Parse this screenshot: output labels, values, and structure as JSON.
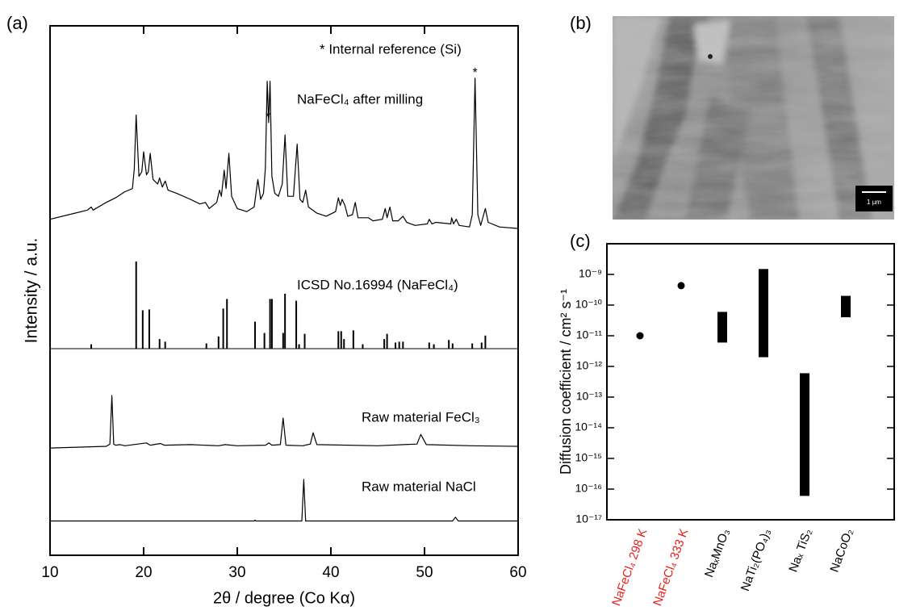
{
  "chart_data": [
    {
      "type": "line",
      "label": "(a)",
      "xlabel": "2θ / degree (Co Kα)",
      "ylabel": "Intensity / a.u.",
      "xlim": [
        10,
        60
      ],
      "xticks": [
        10,
        20,
        30,
        40,
        50,
        60
      ],
      "annotations": [
        "* Internal reference (Si)"
      ],
      "series": [
        {
          "name": "NaFeCl₄ after milling",
          "type": "line",
          "color": "#000000",
          "x": [
            10,
            12,
            14,
            14.4,
            14.6,
            16,
            17,
            18,
            18.8,
            19.0,
            19.2,
            19.5,
            19.8,
            20.0,
            20.3,
            20.5,
            20.7,
            21.0,
            21.5,
            21.7,
            22.0,
            22.3,
            22.6,
            23.5,
            25,
            26,
            26.6,
            27,
            27.8,
            28.1,
            28.3,
            28.6,
            28.8,
            29.1,
            29.4,
            30,
            31,
            31.8,
            32.2,
            32.5,
            32.8,
            33.0,
            33.2,
            33.35,
            33.5,
            33.7,
            34.0,
            34.4,
            34.8,
            35.1,
            35.4,
            36.0,
            36.4,
            36.7,
            37.0,
            37.3,
            37.6,
            38.5,
            39.5,
            40.5,
            40.8,
            41.0,
            41.2,
            41.5,
            41.8,
            42.3,
            42.6,
            42.9,
            44,
            44.5,
            45.5,
            45.8,
            46.0,
            46.3,
            46.6,
            47.2,
            47.7,
            48.1,
            49,
            50.3,
            50.5,
            50.8,
            51.2,
            52.8,
            52.9,
            53.1,
            53.4,
            53.7,
            54.8,
            55.1,
            55.4,
            55.7,
            56.0,
            56.5,
            56.8,
            58,
            60
          ],
          "values": [
            7,
            10,
            13,
            15,
            13,
            18,
            21,
            25,
            27,
            40,
            75,
            35,
            38,
            51,
            36,
            38,
            50,
            33,
            30,
            34,
            28,
            32,
            26,
            24,
            20,
            17,
            18,
            14,
            18,
            26,
            22,
            39,
            27,
            50,
            22,
            14,
            12,
            15,
            33,
            20,
            24,
            40,
            97,
            70,
            97,
            35,
            24,
            22,
            30,
            62,
            22,
            22,
            56,
            20,
            18,
            26,
            15,
            11,
            9,
            12,
            21,
            16,
            20,
            16,
            9,
            10,
            18,
            8,
            8,
            6,
            7,
            14,
            8,
            15,
            6,
            6,
            9,
            5,
            3,
            4,
            7,
            4,
            5,
            4,
            8,
            4,
            7,
            3,
            2,
            10,
            99,
            10,
            3,
            14,
            5,
            2,
            1
          ],
          "peak_marks": [
            {
              "label": "*",
              "x": 33.3
            },
            {
              "label": "*",
              "x": 55.4
            }
          ]
        },
        {
          "name": "ICSD No.16994 (NaFeCl₄)",
          "type": "stem",
          "color": "#000000",
          "x": [
            14.4,
            19.2,
            19.9,
            20.6,
            21.7,
            22.3,
            26.7,
            28.0,
            28.5,
            28.9,
            31.9,
            32.9,
            33.5,
            33.7,
            34.9,
            35.1,
            36.3,
            36.6,
            37.2,
            40.8,
            41.1,
            41.4,
            42.4,
            43.4,
            45.7,
            46.0,
            46.9,
            47.3,
            47.7,
            50.5,
            51.0,
            52.6,
            53.0,
            55.1,
            56.1,
            56.5
          ],
          "values": [
            5,
            100,
            44,
            45,
            11,
            8,
            6,
            14,
            46,
            57,
            31,
            18,
            57,
            57,
            18,
            63,
            55,
            5,
            17,
            20,
            20,
            11,
            21,
            5,
            11,
            17,
            7,
            8,
            8,
            7,
            5,
            10,
            6,
            6,
            7,
            15
          ]
        },
        {
          "name": "Raw material FeCl₃",
          "type": "line",
          "color": "#000000",
          "x": [
            10,
            16,
            16.4,
            16.6,
            16.8,
            17,
            17.5,
            18,
            20.3,
            20.7,
            21.8,
            22.2,
            25,
            28,
            28.7,
            30,
            33,
            33.4,
            33.7,
            34.6,
            34.9,
            35.2,
            37,
            37.8,
            38.1,
            38.5,
            45,
            49.2,
            49.6,
            50.2,
            55,
            60
          ],
          "values": [
            7,
            10,
            14,
            100,
            14,
            12,
            13,
            11,
            16,
            12,
            15,
            12,
            13,
            11,
            13,
            11,
            12,
            16,
            12,
            13,
            60,
            12,
            11,
            14,
            34,
            13,
            11,
            14,
            31,
            13,
            11,
            10
          ]
        },
        {
          "name": "Raw material NaCl",
          "type": "line",
          "color": "#000000",
          "x": [
            10,
            31.8,
            31.9,
            32,
            36.9,
            37.1,
            37.3,
            53.0,
            53.3,
            53.6,
            60
          ],
          "values": [
            1,
            1,
            3,
            1,
            1,
            100,
            1,
            1,
            10,
            1,
            1
          ]
        }
      ]
    },
    {
      "type": "range",
      "label": "(c)",
      "ylabel": "Diffusion coefficient / cm² s⁻¹",
      "log_scale": true,
      "ylim": [
        1e-17,
        1e-08
      ],
      "yticks": [
        {
          "value": 1e-09,
          "label": "10⁻⁹"
        },
        {
          "value": 1e-10,
          "label": "10⁻¹⁰"
        },
        {
          "value": 1e-11,
          "label": "10⁻¹¹"
        },
        {
          "value": 1e-12,
          "label": "10⁻¹²"
        },
        {
          "value": 1e-13,
          "label": "10⁻¹³"
        },
        {
          "value": 1e-14,
          "label": "10⁻¹⁴"
        },
        {
          "value": 1e-15,
          "label": "10⁻¹⁵"
        },
        {
          "value": 1e-16,
          "label": "10⁻¹⁶"
        },
        {
          "value": 1e-17,
          "label": "10⁻¹⁷"
        }
      ],
      "categories": [
        "NaFeCl₄ 298 K",
        "NaFeCl₄ 333 K",
        "NaₓMnO₃",
        "NaTi₂(PO₄)₃",
        "Naₓ TiS₂",
        "NaCoO₂"
      ],
      "category_colors": [
        "#e8201c",
        "#e8201c",
        "#000000",
        "#000000",
        "#000000",
        "#000000"
      ],
      "color": "#000000",
      "values": [
        1e-11,
        4.3e-10,
        null,
        null,
        null,
        null
      ],
      "ranges": [
        null,
        null,
        [
          6e-12,
          6e-11
        ],
        [
          2e-12,
          1.5e-09
        ],
        [
          6e-17,
          6e-13
        ],
        [
          4e-11,
          2e-10
        ]
      ]
    }
  ],
  "image": {
    "label": "(b)",
    "scale_bar": "1 µm"
  }
}
